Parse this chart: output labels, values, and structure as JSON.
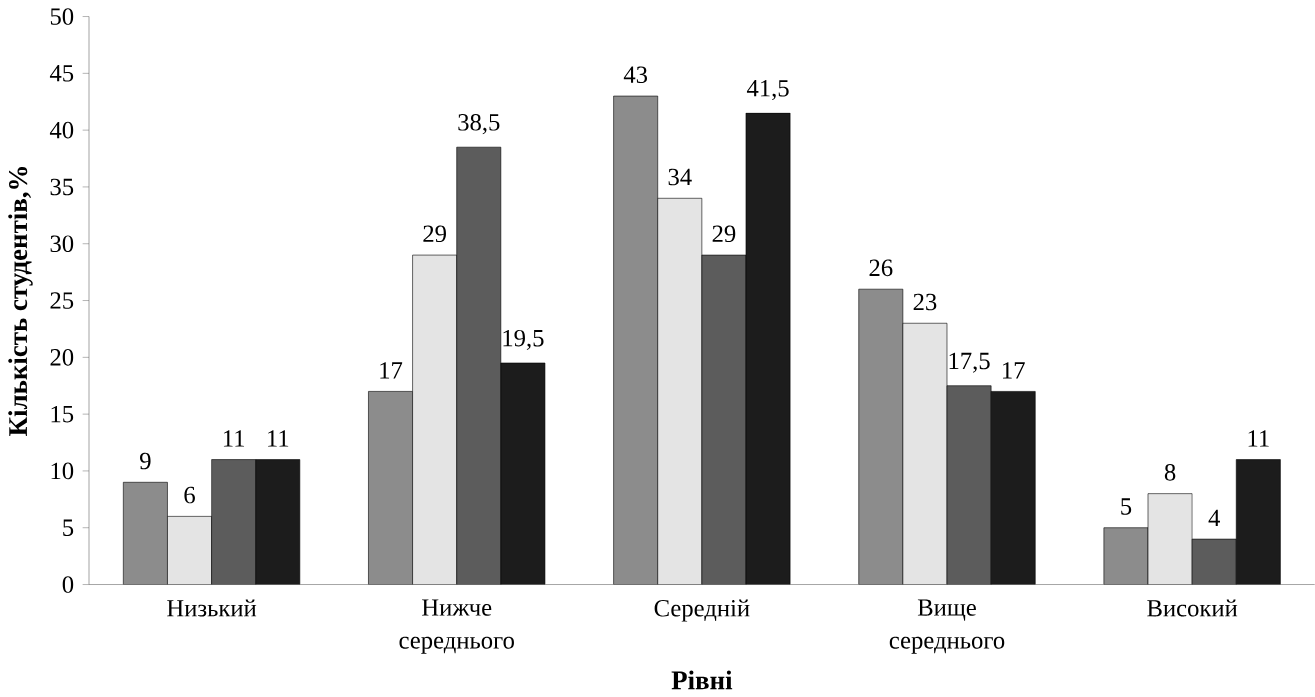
{
  "chart_data": {
    "type": "bar",
    "xlabel": "**Рівні**",
    "ylabel": "**Кількість студентів,%**",
    "categories": [
      "Низький",
      "Нижче середнього",
      "Середній",
      "Вище середнього",
      "Високий"
    ],
    "series": [
      {
        "color": "#8c8c8c",
        "values": [
          9,
          17,
          43,
          26,
          5
        ],
        "value_labels": [
          "9",
          "17",
          "43",
          "26",
          "5"
        ]
      },
      {
        "color": "#e4e4e4",
        "values": [
          6,
          29,
          34,
          23,
          8
        ],
        "value_labels": [
          "6",
          "29",
          "34",
          "23",
          "8"
        ]
      },
      {
        "color": "#5c5c5c",
        "values": [
          11,
          38.5,
          29,
          17.5,
          4
        ],
        "value_labels": [
          "11",
          "38,5",
          "29",
          "17,5",
          "4"
        ]
      },
      {
        "color": "#1c1c1c",
        "values": [
          11,
          19.5,
          41.5,
          17,
          11
        ],
        "value_labels": [
          "11",
          "19,5",
          "41,5",
          "17",
          "11"
        ]
      }
    ],
    "ylim": [
      0,
      50
    ],
    "yticks": [
      0,
      5,
      10,
      15,
      20,
      25,
      30,
      35,
      40,
      45,
      50
    ],
    "grid": false
  }
}
